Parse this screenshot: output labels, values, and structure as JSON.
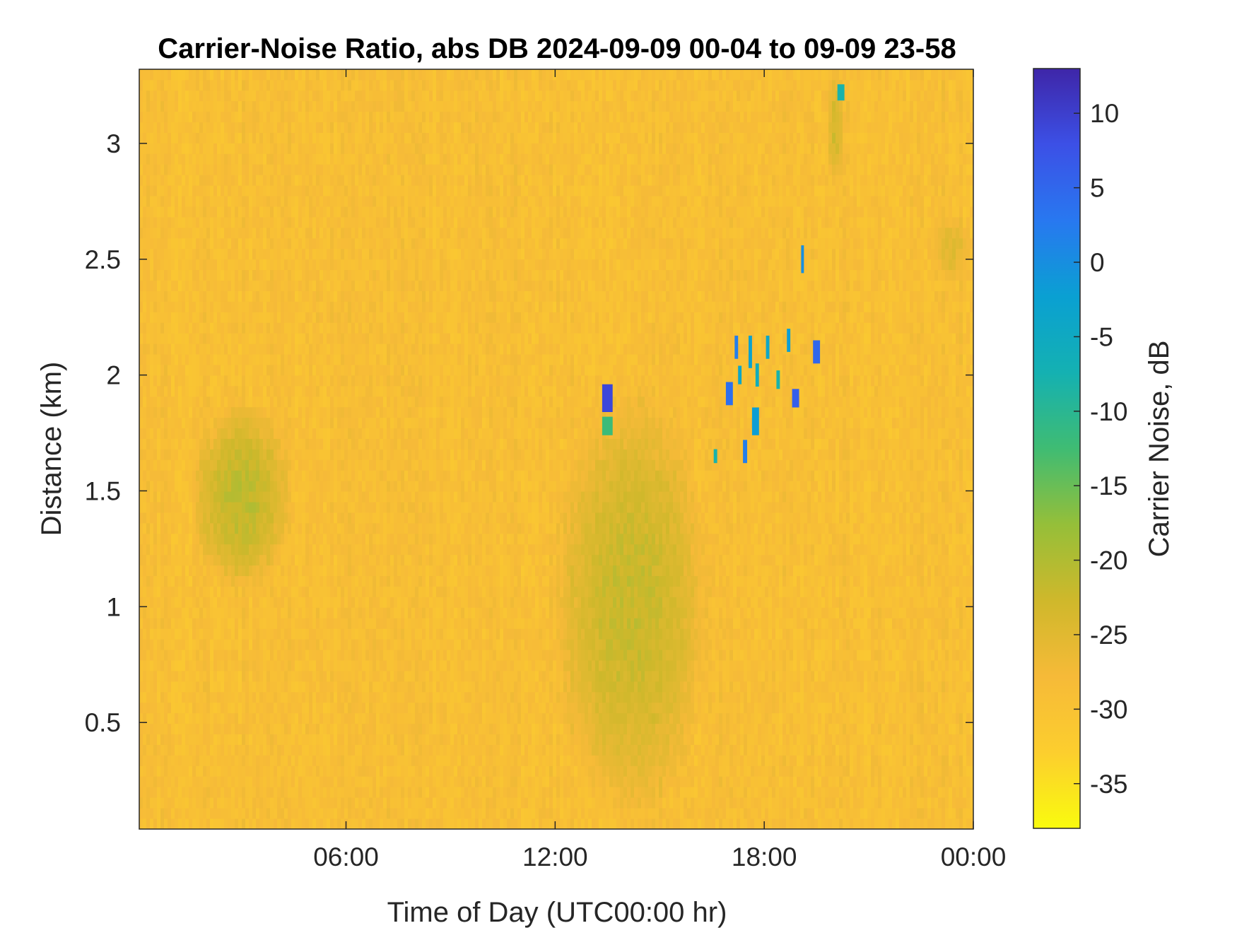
{
  "chart_data": {
    "type": "heatmap",
    "title": "Carrier-Noise Ratio, abs DB 2024-09-09 00-04 to 09-09 23-58",
    "xlabel": "Time of Day (UTC00:00 hr)",
    "ylabel": "Distance (km)",
    "colorbar_label": "Carrier Noise, dB",
    "xlim": [
      0.067,
      24.0
    ],
    "ylim": [
      0.04,
      3.32
    ],
    "clim": [
      -38,
      13
    ],
    "x_ticks": [
      {
        "value": 6,
        "label": "06:00"
      },
      {
        "value": 12,
        "label": "12:00"
      },
      {
        "value": 18,
        "label": "18:00"
      },
      {
        "value": 24,
        "label": "00:00"
      }
    ],
    "y_ticks": [
      {
        "value": 0.5,
        "label": "0.5"
      },
      {
        "value": 1.0,
        "label": "1"
      },
      {
        "value": 1.5,
        "label": "1.5"
      },
      {
        "value": 2.0,
        "label": "2"
      },
      {
        "value": 2.5,
        "label": "2.5"
      },
      {
        "value": 3.0,
        "label": "3"
      }
    ],
    "colorbar_ticks": [
      {
        "value": -35,
        "label": "-35"
      },
      {
        "value": -30,
        "label": "-30"
      },
      {
        "value": -25,
        "label": "-25"
      },
      {
        "value": -20,
        "label": "-20"
      },
      {
        "value": -15,
        "label": "-15"
      },
      {
        "value": -10,
        "label": "-10"
      },
      {
        "value": -5,
        "label": "-5"
      },
      {
        "value": 0,
        "label": "0"
      },
      {
        "value": 5,
        "label": "5"
      },
      {
        "value": 10,
        "label": "10"
      }
    ],
    "colormap": "parula (reversed)",
    "background_level_db": -29,
    "regions": [
      {
        "kind": "plume",
        "t_range": [
          1.5,
          4.5
        ],
        "d_range": [
          1.05,
          1.9
        ],
        "level_db": -21
      },
      {
        "kind": "plume",
        "t_range": [
          11.8,
          16.5
        ],
        "d_range": [
          0.04,
          2.0
        ],
        "level_db": -22
      },
      {
        "kind": "plume",
        "t_range": [
          19.8,
          20.3
        ],
        "d_range": [
          2.8,
          3.32
        ],
        "level_db": -23
      },
      {
        "kind": "plume",
        "t_range": [
          22.8,
          24.0
        ],
        "d_range": [
          2.4,
          2.7
        ],
        "level_db": -25
      }
    ],
    "cells": [
      {
        "t": 13.5,
        "d": 1.9,
        "dt": 0.3,
        "dd": 0.12,
        "db": 9
      },
      {
        "t": 13.5,
        "d": 1.78,
        "dt": 0.3,
        "dd": 0.08,
        "db": -12
      },
      {
        "t": 20.2,
        "d": 3.22,
        "dt": 0.2,
        "dd": 0.07,
        "db": -8
      },
      {
        "t": 19.1,
        "d": 2.5,
        "dt": 0.08,
        "dd": 0.12,
        "db": 0
      },
      {
        "t": 17.2,
        "d": 2.12,
        "dt": 0.1,
        "dd": 0.1,
        "db": 2
      },
      {
        "t": 17.6,
        "d": 2.1,
        "dt": 0.1,
        "dd": 0.14,
        "db": -3
      },
      {
        "t": 18.1,
        "d": 2.12,
        "dt": 0.1,
        "dd": 0.1,
        "db": -4
      },
      {
        "t": 18.7,
        "d": 2.15,
        "dt": 0.1,
        "dd": 0.1,
        "db": -2
      },
      {
        "t": 19.5,
        "d": 2.1,
        "dt": 0.2,
        "dd": 0.1,
        "db": 5
      },
      {
        "t": 17.0,
        "d": 1.92,
        "dt": 0.2,
        "dd": 0.1,
        "db": 4
      },
      {
        "t": 17.3,
        "d": 2.0,
        "dt": 0.1,
        "dd": 0.08,
        "db": -4
      },
      {
        "t": 17.8,
        "d": 2.0,
        "dt": 0.1,
        "dd": 0.1,
        "db": -6
      },
      {
        "t": 18.4,
        "d": 1.98,
        "dt": 0.1,
        "dd": 0.08,
        "db": -8
      },
      {
        "t": 18.9,
        "d": 1.9,
        "dt": 0.2,
        "dd": 0.08,
        "db": 6
      },
      {
        "t": 17.75,
        "d": 1.8,
        "dt": 0.2,
        "dd": 0.12,
        "db": -2
      },
      {
        "t": 17.45,
        "d": 1.67,
        "dt": 0.12,
        "dd": 0.1,
        "db": 2
      },
      {
        "t": 16.6,
        "d": 1.65,
        "dt": 0.1,
        "dd": 0.06,
        "db": -8
      }
    ]
  }
}
